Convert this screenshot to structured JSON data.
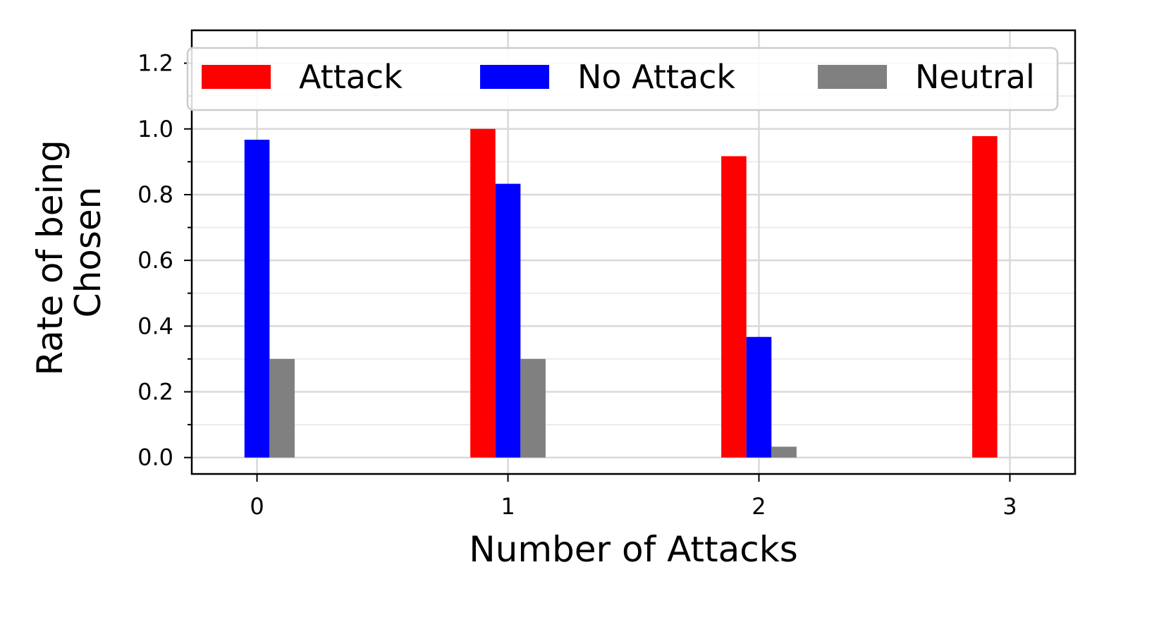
{
  "chart_data": {
    "type": "bar",
    "title": "",
    "xlabel": "Number of Attacks",
    "ylabel_lines": [
      "Rate of being",
      "Chosen"
    ],
    "categories": [
      "0",
      "1",
      "2",
      "3"
    ],
    "x": [
      0,
      1,
      2,
      3
    ],
    "series": [
      {
        "name": "Attack",
        "color": "#ff0000",
        "values": [
          0,
          1.0,
          0.917,
          0.978
        ]
      },
      {
        "name": "No Attack",
        "color": "#0000ff",
        "values": [
          0.967,
          0.833,
          0.367,
          0
        ]
      },
      {
        "name": "Neutral",
        "color": "#808080",
        "values": [
          0.3,
          0.3,
          0.033,
          0
        ]
      }
    ],
    "xlim": [
      -0.26,
      3.26
    ],
    "ylim": [
      -0.05,
      1.3
    ],
    "yticks": [
      0.0,
      0.2,
      0.4,
      0.6,
      0.8,
      1.0,
      1.2
    ],
    "ytick_labels": [
      "0.0",
      "0.2",
      "0.4",
      "0.6",
      "0.8",
      "1.0",
      "1.2"
    ],
    "grid": true,
    "legend_placement": "top",
    "legend_columns": 3
  }
}
